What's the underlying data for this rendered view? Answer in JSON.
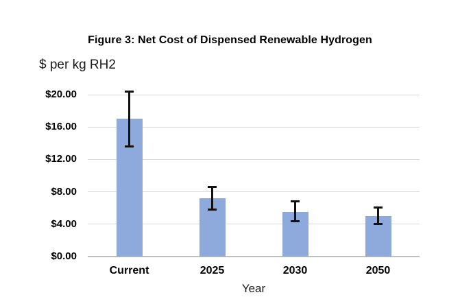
{
  "chart_data": {
    "type": "bar",
    "title": "Figure 3: Net Cost of Dispensed Renewable Hydrogen",
    "ylabel": "$ per kg RH2",
    "xlabel": "Year",
    "categories": [
      "Current",
      "2025",
      "2030",
      "2050"
    ],
    "values": [
      17.0,
      7.2,
      5.5,
      5.0
    ],
    "error_low": [
      13.6,
      5.8,
      4.4,
      4.0
    ],
    "error_high": [
      20.4,
      8.6,
      6.8,
      6.1
    ],
    "ylim": [
      0,
      21.7
    ],
    "yticks": [
      0,
      4,
      8,
      12,
      16,
      20
    ],
    "ytick_labels": [
      "$0.00",
      "$4.00",
      "$8.00",
      "$12.00",
      "$16.00",
      "$20.00"
    ],
    "grid": true,
    "legend": false,
    "bar_color": "#8EA9DB",
    "gridline_color": "#D9D9D9",
    "axis_line_color": "#BFBFBF",
    "error_bar_color": "#111111"
  }
}
